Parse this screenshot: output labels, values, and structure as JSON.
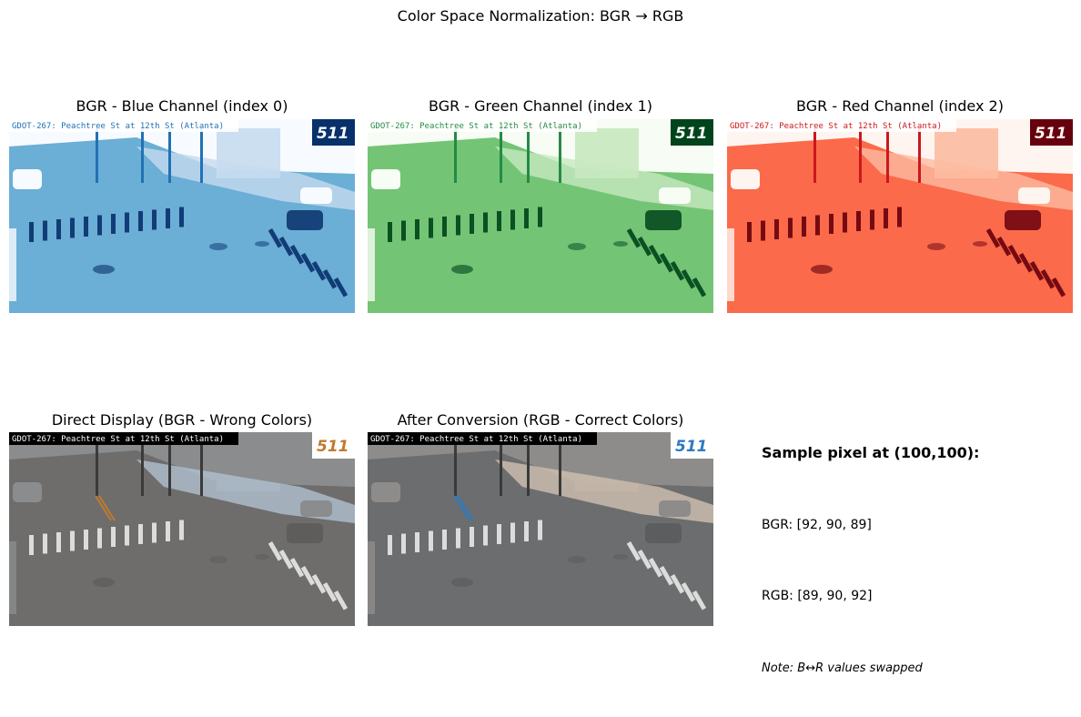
{
  "figure": {
    "title": "Color Space Normalization: BGR → RGB"
  },
  "panels": [
    {
      "title": "BGR - Blue Channel (index 0)",
      "overlay_text": "GDOT-267: Peachtree St at 12th St (Atlanta)",
      "logo_text": "511",
      "colormap": "Blues"
    },
    {
      "title": "BGR - Green Channel (index 1)",
      "overlay_text": "GDOT-267: Peachtree St at 12th St (Atlanta)",
      "logo_text": "511",
      "colormap": "Greens"
    },
    {
      "title": "BGR - Red Channel (index 2)",
      "overlay_text": "GDOT-267: Peachtree St at 12th St (Atlanta)",
      "logo_text": "511",
      "colormap": "Reds"
    },
    {
      "title": "Direct Display (BGR - Wrong Colors)",
      "overlay_text": "GDOT-267: Peachtree St at 12th St (Atlanta)",
      "logo_text": "511",
      "colormap": "bgr"
    },
    {
      "title": "After Conversion (RGB - Correct Colors)",
      "overlay_text": "GDOT-267: Peachtree St at 12th St (Atlanta)",
      "logo_text": "511",
      "colormap": "rgb"
    }
  ],
  "info": {
    "heading": "Sample pixel at (100,100):",
    "bgr": "BGR: [92, 90, 89]",
    "rgb": "RGB: [89, 90, 92]",
    "note": "Note: B↔R values swapped"
  },
  "colors": {
    "blues": [
      "#f7fbff",
      "#c6dbef",
      "#6baed6",
      "#2171b5",
      "#08306b"
    ],
    "greens": [
      "#f7fcf5",
      "#c7e9c0",
      "#74c476",
      "#238b45",
      "#00441b"
    ],
    "reds": [
      "#fff5f0",
      "#fcbba1",
      "#fb6a4a",
      "#cb181d",
      "#67000d"
    ],
    "bgr": [
      "#5c5a59",
      "#6e6d6c",
      "#8a8c8e",
      "#b0c0d0",
      "#c07a2e"
    ],
    "rgb": [
      "#595a5c",
      "#6c6d6e",
      "#8e8c8a",
      "#d0c0b0",
      "#2e7ac0"
    ]
  }
}
